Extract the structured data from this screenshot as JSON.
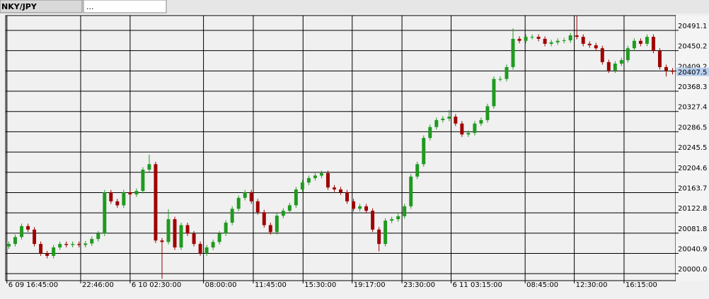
{
  "tabs": [
    "NKY/JPY",
    "..."
  ],
  "chart_data": {
    "type": "candlestick",
    "up_color": "#1f9a1f",
    "down_color": "#a00000",
    "grid": true,
    "xlim": [
      -0.5,
      104.5
    ],
    "xticks": [
      {
        "value": -0.3,
        "label": "6 09 16:45:00"
      },
      {
        "value": 11.25,
        "label": "22:46:00"
      },
      {
        "value": 19.0,
        "label": "6 10 02:30:00"
      },
      {
        "value": 30.5,
        "label": "08:00:00"
      },
      {
        "value": 38.3,
        "label": "11:45:00"
      },
      {
        "value": 46.1,
        "label": "15:30:00"
      },
      {
        "value": 53.8,
        "label": "19:17:00"
      },
      {
        "value": 61.6,
        "label": "23:30:00"
      },
      {
        "value": 69.3,
        "label": "6 11 03:15:00"
      },
      {
        "value": 80.9,
        "label": "08:45:00"
      },
      {
        "value": 88.6,
        "label": "12:30:00"
      },
      {
        "value": 96.4,
        "label": "16:15:00"
      }
    ],
    "ylim": [
      19986,
      20521
    ],
    "yticks": [
      {
        "value": 20000,
        "label": "20000.0"
      },
      20040.9,
      20081.8,
      20122.8,
      20163.7,
      20204.6,
      20245.5,
      20286.5,
      20327.4,
      20368.3,
      20409.2,
      20450.2,
      20491.1
    ],
    "candles": {
      "open": [
        20055,
        20060,
        20074,
        20096,
        20089,
        20060,
        20041,
        20036,
        20053,
        20060,
        20058,
        20060,
        20058,
        20061,
        20070,
        20081,
        20164,
        20146,
        20138,
        20164,
        20160,
        20167,
        20210,
        20221,
        20067,
        20064,
        20110,
        20053,
        20098,
        20081,
        20060,
        20041,
        20053,
        20064,
        20081,
        20103,
        20131,
        20153,
        20164,
        20146,
        20124,
        20098,
        20084,
        20117,
        20127,
        20138,
        20170,
        20184,
        20193,
        20198,
        20203,
        20174,
        20170,
        20164,
        20146,
        20131,
        20136,
        20127,
        20089,
        20060,
        20107,
        20110,
        20116,
        20136,
        20196,
        20221,
        20274,
        20296,
        20310,
        20313,
        20317,
        20303,
        20281,
        20284,
        20303,
        20310,
        20338,
        20393,
        20393,
        20417,
        20474,
        20470,
        20478,
        20478,
        20474,
        20464,
        20467,
        20470,
        20471,
        20481,
        20478,
        20464,
        20461,
        20455,
        20427,
        20410,
        20424,
        20431,
        20455,
        20470,
        20464,
        20478,
        20450,
        20417,
        20410
      ],
      "high": [
        20065,
        20079,
        20101,
        20101,
        20094,
        20065,
        20046,
        20058,
        20065,
        20065,
        20065,
        20065,
        20066,
        20075,
        20086,
        20169,
        20169,
        20151,
        20169,
        20169,
        20172,
        20215,
        20240,
        20226,
        20072,
        20130,
        20115,
        20103,
        20103,
        20086,
        20065,
        20058,
        20069,
        20086,
        20108,
        20136,
        20158,
        20169,
        20169,
        20151,
        20129,
        20103,
        20122,
        20132,
        20143,
        20175,
        20189,
        20198,
        20203,
        20208,
        20208,
        20179,
        20175,
        20169,
        20151,
        20141,
        20141,
        20132,
        20094,
        20112,
        20115,
        20121,
        20141,
        20201,
        20226,
        20279,
        20301,
        20315,
        20318,
        20330,
        20322,
        20308,
        20289,
        20308,
        20315,
        20343,
        20398,
        20398,
        20422,
        20495,
        20479,
        20483,
        20483,
        20483,
        20479,
        20472,
        20475,
        20476,
        20486,
        20521,
        20483,
        20469,
        20466,
        20460,
        20432,
        20429,
        20436,
        20460,
        20475,
        20475,
        20483,
        20483,
        20455,
        20422,
        20415
      ],
      "low": [
        20050,
        20055,
        20069,
        20084,
        20055,
        20036,
        20031,
        20031,
        20048,
        20053,
        20053,
        20053,
        20053,
        20056,
        20065,
        20076,
        20141,
        20133,
        20133,
        20155,
        20155,
        20162,
        20205,
        20062,
        19990,
        20059,
        20048,
        20048,
        20076,
        20055,
        20036,
        20036,
        20048,
        20059,
        20076,
        20098,
        20126,
        20148,
        20141,
        20119,
        20093,
        20079,
        20079,
        20112,
        20122,
        20133,
        20165,
        20179,
        20188,
        20193,
        20169,
        20165,
        20159,
        20141,
        20126,
        20126,
        20122,
        20084,
        20045,
        20055,
        20102,
        20105,
        20111,
        20131,
        20191,
        20216,
        20269,
        20291,
        20305,
        20308,
        20298,
        20276,
        20276,
        20279,
        20298,
        20305,
        20333,
        20388,
        20388,
        20412,
        20465,
        20465,
        20473,
        20469,
        20459,
        20459,
        20462,
        20465,
        20466,
        20473,
        20459,
        20456,
        20450,
        20422,
        20405,
        20405,
        20419,
        20426,
        20450,
        20459,
        20459,
        20445,
        20412,
        20398,
        20402
      ],
      "close": [
        20060,
        20074,
        20096,
        20089,
        20060,
        20041,
        20036,
        20053,
        20060,
        20058,
        20060,
        20058,
        20061,
        20070,
        20081,
        20164,
        20146,
        20138,
        20164,
        20160,
        20167,
        20210,
        20221,
        20067,
        20064,
        20110,
        20053,
        20098,
        20081,
        20060,
        20041,
        20053,
        20064,
        20081,
        20103,
        20131,
        20153,
        20164,
        20146,
        20124,
        20098,
        20084,
        20117,
        20127,
        20138,
        20170,
        20184,
        20193,
        20198,
        20203,
        20174,
        20170,
        20164,
        20146,
        20131,
        20136,
        20127,
        20089,
        20060,
        20107,
        20110,
        20116,
        20136,
        20196,
        20221,
        20274,
        20296,
        20310,
        20313,
        20317,
        20303,
        20281,
        20284,
        20303,
        20310,
        20338,
        20393,
        20393,
        20417,
        20474,
        20470,
        20478,
        20478,
        20474,
        20464,
        20467,
        20470,
        20471,
        20481,
        20478,
        20464,
        20461,
        20455,
        20427,
        20410,
        20424,
        20431,
        20455,
        20470,
        20464,
        20478,
        20450,
        20417,
        20410,
        20407.5
      ]
    }
  }
}
